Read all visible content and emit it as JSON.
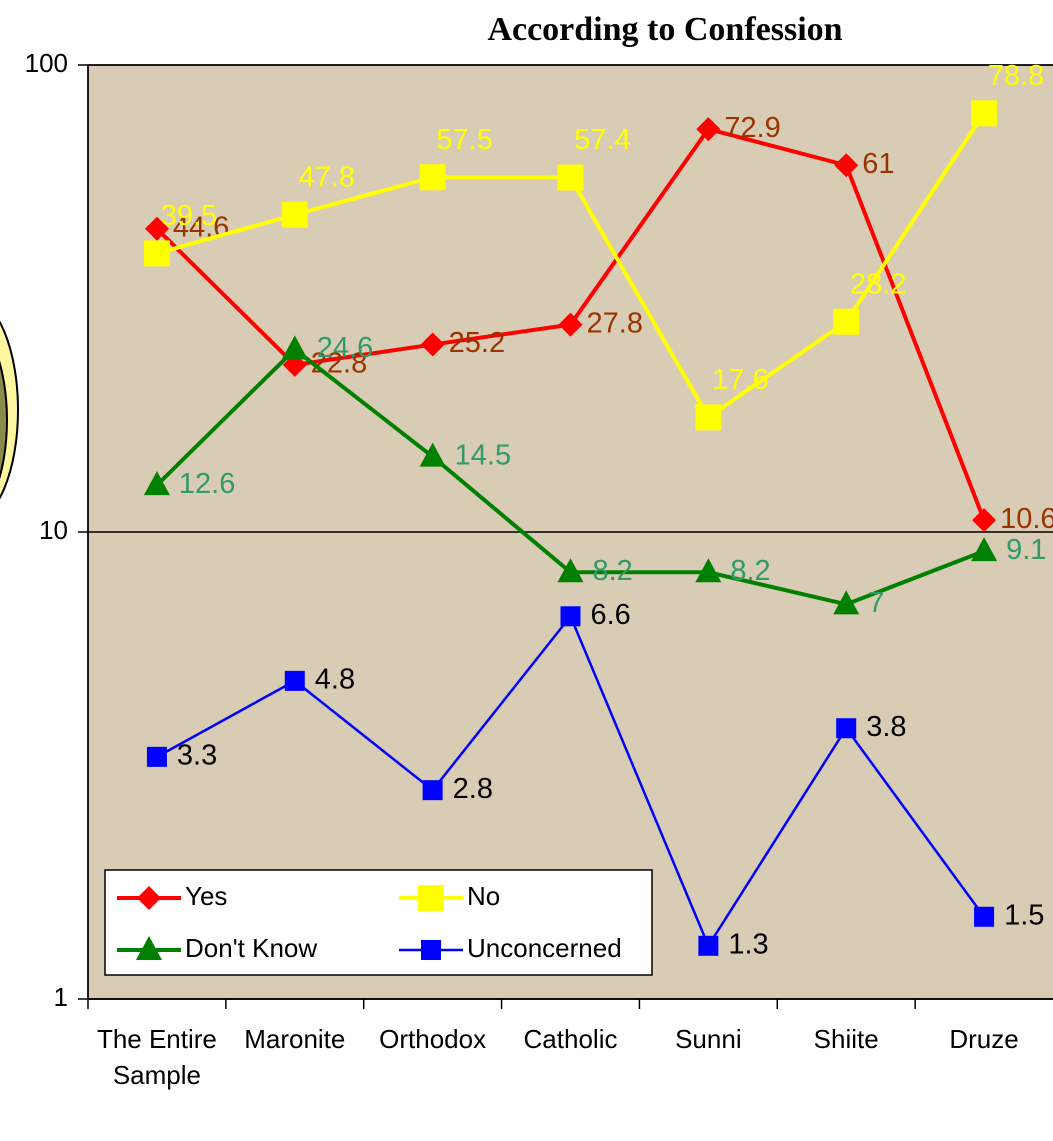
{
  "chart_data": {
    "type": "line",
    "title": "According to Confession",
    "categories": [
      "The Entire Sample",
      "Maronite",
      "Orthodox",
      "Catholic",
      "Sunni",
      "Shiite",
      "Druze"
    ],
    "series": [
      {
        "name": "Yes",
        "color": "#ff0000",
        "label_color": "#993300",
        "marker": "diamond",
        "values": [
          44.6,
          22.8,
          25.2,
          27.8,
          72.9,
          61,
          10.6
        ]
      },
      {
        "name": "No",
        "color": "#ffff00",
        "label_color": "#ffff00",
        "marker": "square",
        "values": [
          39.5,
          47.8,
          57.5,
          57.4,
          17.6,
          28.2,
          78.8
        ]
      },
      {
        "name": "Don't Know",
        "color": "#008000",
        "label_color": "#339966",
        "marker": "triangle",
        "values": [
          12.6,
          24.6,
          14.5,
          8.2,
          8.2,
          7,
          9.1
        ]
      },
      {
        "name": "Unconcerned",
        "color": "#0000ff",
        "label_color": "#000000",
        "marker": "square",
        "values": [
          3.3,
          4.8,
          2.8,
          6.6,
          1.3,
          3.8,
          1.5
        ]
      }
    ],
    "ylim": [
      1,
      100
    ],
    "yticks": [
      1,
      10,
      100
    ],
    "log_scale": true,
    "grid": true,
    "legend": "lower left"
  }
}
